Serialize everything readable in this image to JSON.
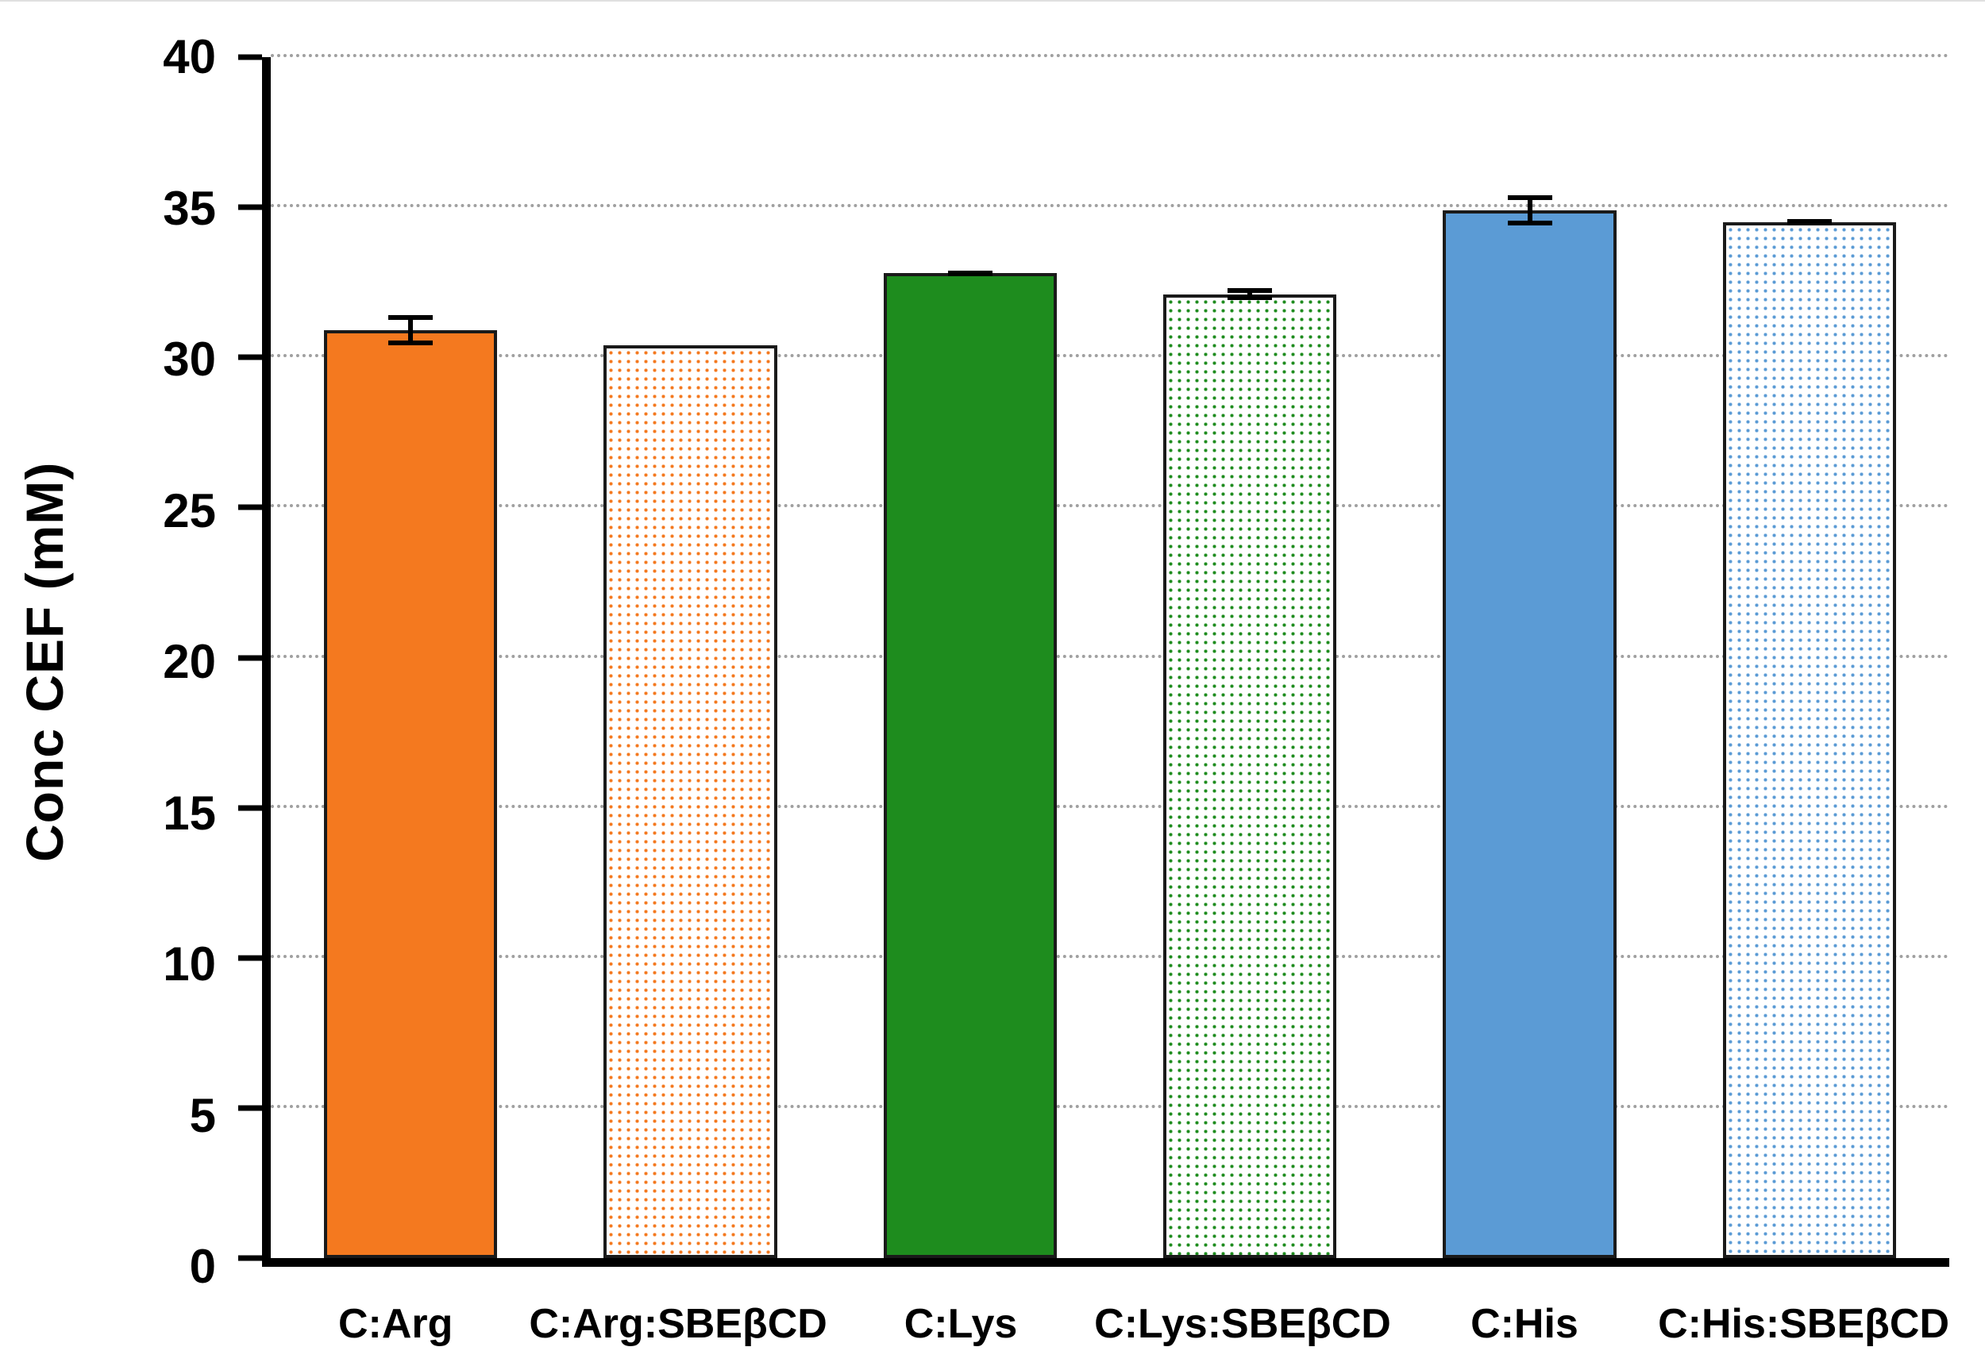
{
  "chart_data": {
    "type": "bar",
    "title": "",
    "xlabel": "",
    "ylabel": "Conc CEF (mM)",
    "categories": [
      "C:Arg",
      "C:Arg:SBEβCD",
      "C:Lys",
      "C:Lys:SBEβCD",
      "C:His",
      "C:His:SBEβCD"
    ],
    "values": [
      30.9,
      30.4,
      32.8,
      32.1,
      34.9,
      34.5
    ],
    "errors": [
      0.5,
      0,
      0.1,
      0.2,
      0.5,
      0.1
    ],
    "ylim": [
      0,
      40
    ],
    "yticks": [
      0,
      5,
      10,
      15,
      20,
      25,
      30,
      35,
      40
    ],
    "grid": "dotted horizontal gridlines at each y tick",
    "legend": "none",
    "bar_styles": [
      {
        "fill": "solid",
        "color": "#F4791F"
      },
      {
        "fill": "dots",
        "color": "#F4791F"
      },
      {
        "fill": "solid",
        "color": "#1E8C1E"
      },
      {
        "fill": "dots",
        "color": "#1E8C1E"
      },
      {
        "fill": "solid",
        "color": "#5B9BD5"
      },
      {
        "fill": "dots",
        "color": "#5B9BD5"
      }
    ],
    "colors": {
      "axis": "#000000",
      "gridline": "#a0a0a0",
      "error_bar": "#000000",
      "background": "#ffffff"
    }
  }
}
